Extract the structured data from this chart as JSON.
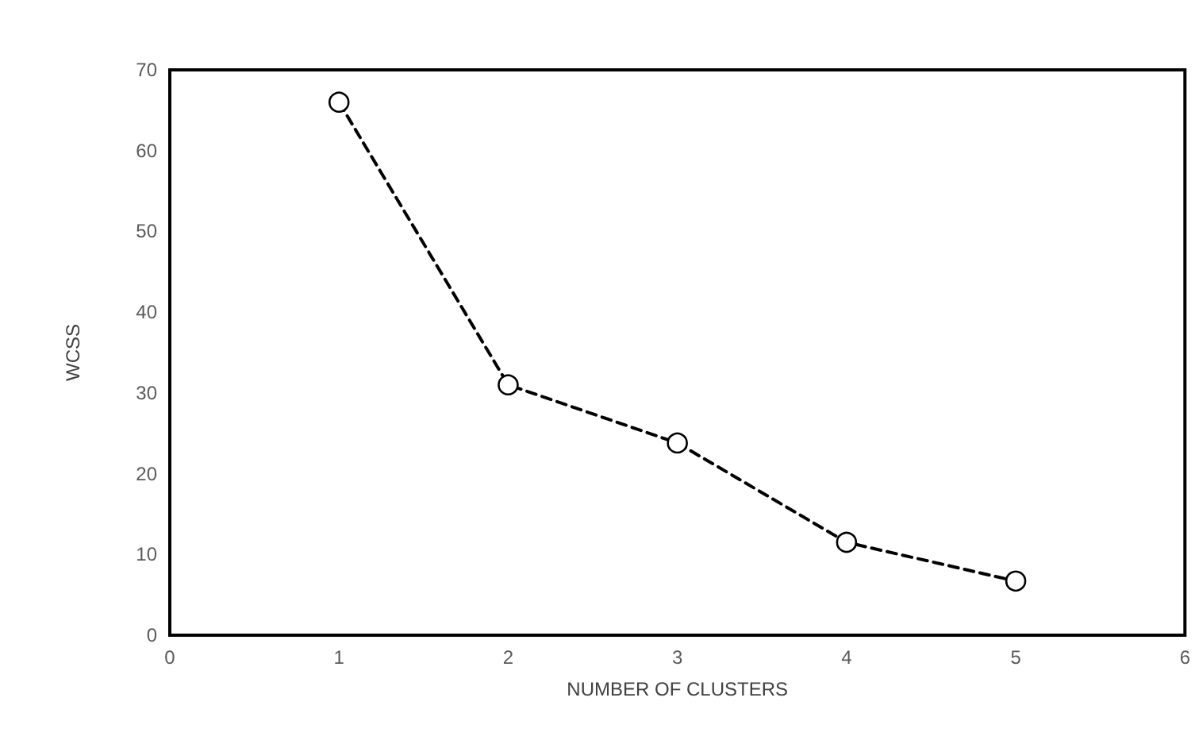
{
  "chart_data": {
    "type": "line",
    "xlabel": "NUMBER OF CLUSTERS",
    "ylabel": "WCSS",
    "x": [
      1,
      2,
      3,
      4,
      5
    ],
    "series": [
      {
        "color": "#000000",
        "values": [
          66,
          31,
          23.8,
          11.5,
          6.7
        ]
      }
    ],
    "xlim": [
      0,
      6
    ],
    "xticks": [
      0,
      1,
      2,
      3,
      4,
      5,
      6
    ],
    "ylim": [
      0,
      70
    ],
    "yticks": [
      0,
      10,
      20,
      30,
      40,
      50,
      60,
      70
    ],
    "grid": false,
    "marker": "circle",
    "line_style": "dashed"
  }
}
